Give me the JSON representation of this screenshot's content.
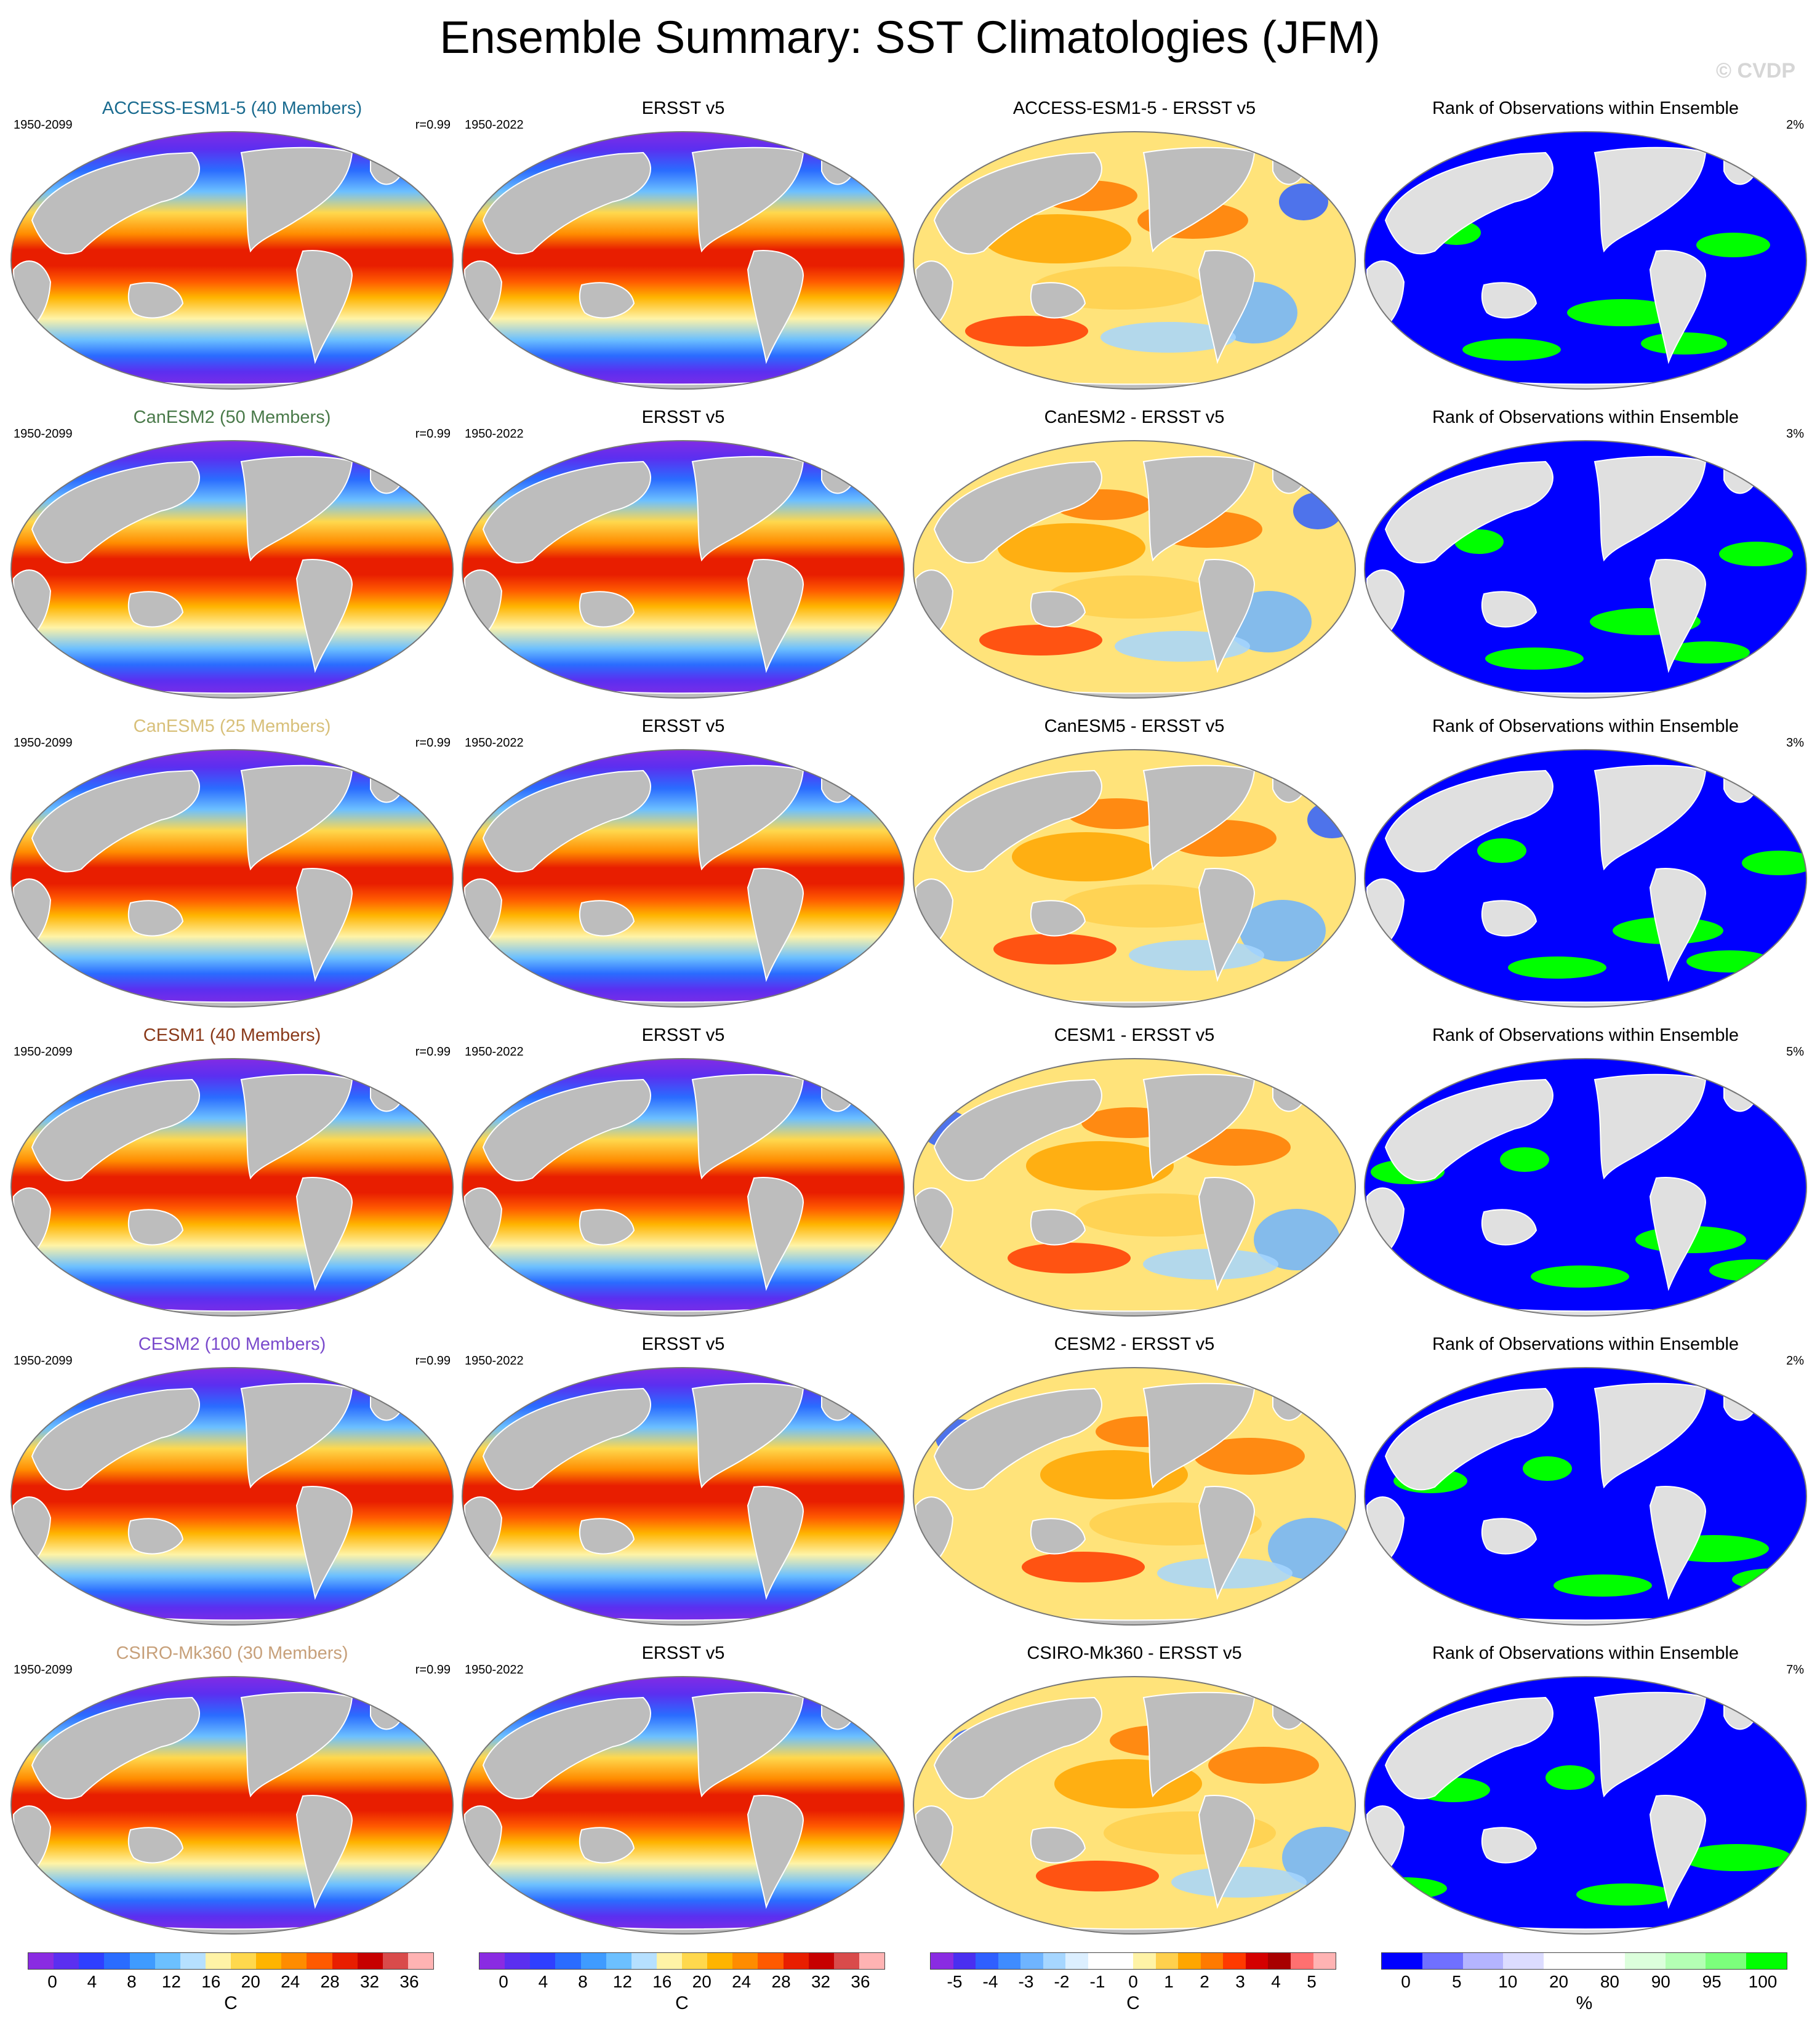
{
  "figure": {
    "title": "Ensemble Summary: SST Climatologies (JFM)",
    "copyright": "© CVDP"
  },
  "colors": {
    "land": "#bdbdbd",
    "border": "#777777",
    "sst_scale": [
      "#8a2be2",
      "#5b2ff0",
      "#2f3fff",
      "#2a6cff",
      "#3f9bff",
      "#6cc0ff",
      "#b6e0ff",
      "#fff3a6",
      "#ffd84d",
      "#ffb400",
      "#ff8c00",
      "#ff5a00",
      "#e81e00",
      "#c70000",
      "#d94b4b",
      "#ffb3b3"
    ],
    "diff_scale": [
      "#8a2be2",
      "#4a2ff0",
      "#2f5fff",
      "#3f8cff",
      "#6fb4ff",
      "#a6d6ff",
      "#dcefff",
      "#ffffff",
      "#ffffff",
      "#fff3a6",
      "#ffd04d",
      "#ffa600",
      "#ff7a00",
      "#ff3a00",
      "#d40000",
      "#a80000",
      "#ff7070",
      "#ffb3b3"
    ],
    "rank_scale": [
      "#0000ff",
      "#7070ff",
      "#b4b4ff",
      "#dcdcff",
      "#ffffff",
      "#ffffff",
      "#dcffdc",
      "#b4ffb4",
      "#7cff7c",
      "#00ff00"
    ],
    "model_title_colors": [
      "#1a6b8f",
      "#4a7a4a",
      "#d8c07a",
      "#8a3a1a",
      "#7a4acc",
      "#c7a07a"
    ]
  },
  "rows": [
    {
      "model": {
        "title": "ACCESS-ESM1-5 (40 Members)",
        "period": "1950-2099",
        "corr": "r=0.99"
      },
      "obs": {
        "title": "ERSST v5",
        "period": "1950-2022"
      },
      "diff": {
        "title": "ACCESS-ESM1-5 - ERSST v5"
      },
      "rank": {
        "title": "Rank of Observations within Ensemble",
        "pct": "2%"
      }
    },
    {
      "model": {
        "title": "CanESM2 (50 Members)",
        "period": "1950-2099",
        "corr": "r=0.99"
      },
      "obs": {
        "title": "ERSST v5",
        "period": "1950-2022"
      },
      "diff": {
        "title": "CanESM2 - ERSST v5"
      },
      "rank": {
        "title": "Rank of Observations within Ensemble",
        "pct": "3%"
      }
    },
    {
      "model": {
        "title": "CanESM5 (25 Members)",
        "period": "1950-2099",
        "corr": "r=0.99"
      },
      "obs": {
        "title": "ERSST v5",
        "period": "1950-2022"
      },
      "diff": {
        "title": "CanESM5 - ERSST v5"
      },
      "rank": {
        "title": "Rank of Observations within Ensemble",
        "pct": "3%"
      }
    },
    {
      "model": {
        "title": "CESM1 (40 Members)",
        "period": "1950-2099",
        "corr": "r=0.99"
      },
      "obs": {
        "title": "ERSST v5",
        "period": "1950-2022"
      },
      "diff": {
        "title": "CESM1 - ERSST v5"
      },
      "rank": {
        "title": "Rank of Observations within Ensemble",
        "pct": "5%"
      }
    },
    {
      "model": {
        "title": "CESM2 (100 Members)",
        "period": "1950-2099",
        "corr": "r=0.99"
      },
      "obs": {
        "title": "ERSST v5",
        "period": "1950-2022"
      },
      "diff": {
        "title": "CESM2 - ERSST v5"
      },
      "rank": {
        "title": "Rank of Observations within Ensemble",
        "pct": "2%"
      }
    },
    {
      "model": {
        "title": "CSIRO-Mk360 (30 Members)",
        "period": "1950-2099",
        "corr": "r=0.99"
      },
      "obs": {
        "title": "ERSST v5",
        "period": "1950-2022"
      },
      "diff": {
        "title": "CSIRO-Mk360 - ERSST v5"
      },
      "rank": {
        "title": "Rank of Observations within Ensemble",
        "pct": "7%"
      }
    }
  ],
  "colorbars": [
    {
      "ticks": [
        "0",
        "4",
        "8",
        "12",
        "16",
        "20",
        "24",
        "28",
        "32",
        "36"
      ],
      "unit": "C"
    },
    {
      "ticks": [
        "0",
        "4",
        "8",
        "12",
        "16",
        "20",
        "24",
        "28",
        "32",
        "36"
      ],
      "unit": "C"
    },
    {
      "ticks": [
        "-5",
        "-4",
        "-3",
        "-2",
        "-1",
        "0",
        "1",
        "2",
        "3",
        "4",
        "5"
      ],
      "unit": "C"
    },
    {
      "ticks": [
        "0",
        "5",
        "10",
        "20",
        "80",
        "90",
        "95",
        "100"
      ],
      "unit": "%"
    }
  ]
}
